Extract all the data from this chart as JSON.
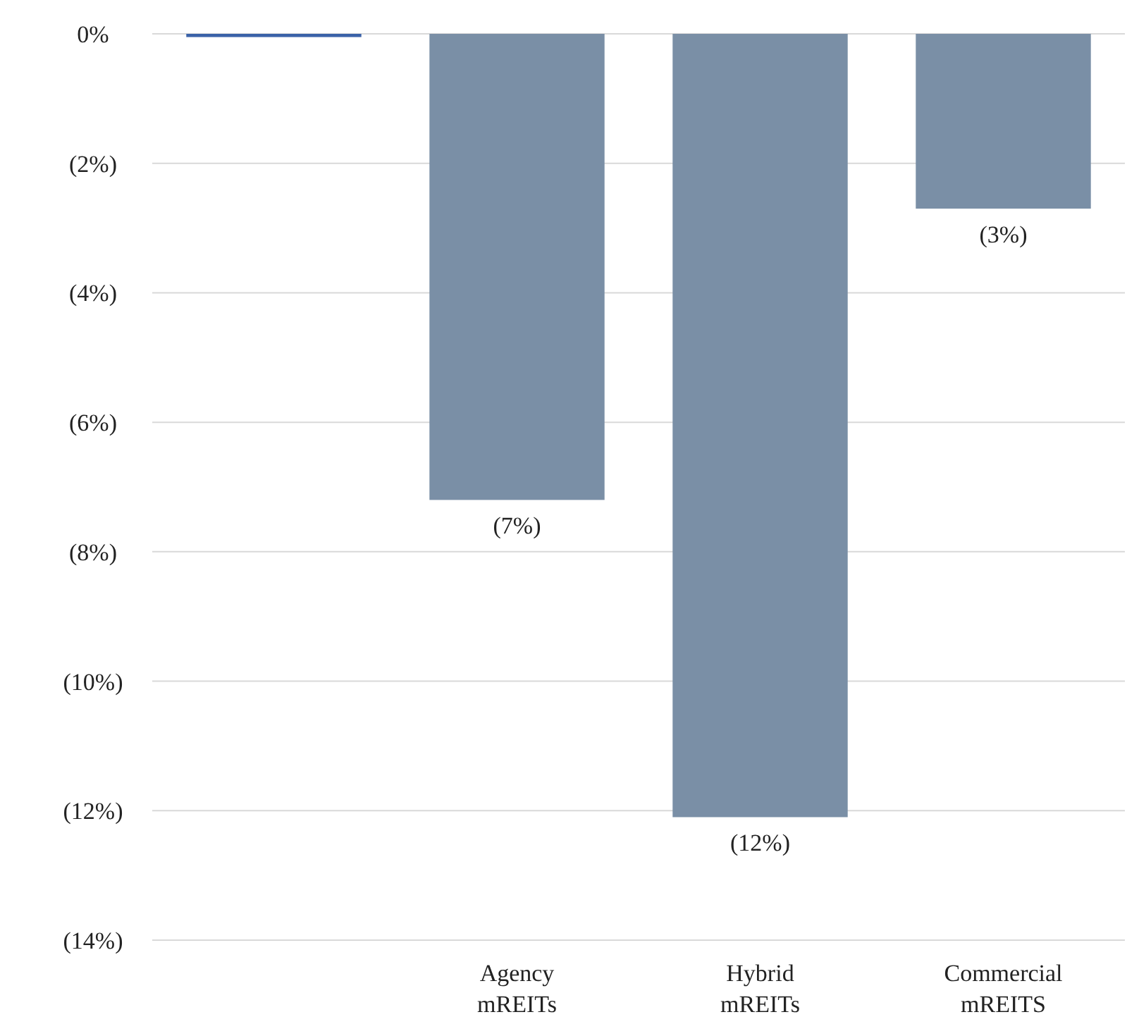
{
  "chart_data": {
    "type": "bar",
    "categories": [
      null,
      "Agency mREITs",
      "Hybrid mREITs",
      "Commercial mREITS"
    ],
    "values": [
      -0.05,
      -7.2,
      -12.1,
      -2.7
    ],
    "colors": [
      "#3a62a8",
      "#7a8fa6",
      "#7a8fa6",
      "#7a8fa6"
    ],
    "value_labels": [
      null,
      "(7%)",
      "(12%)",
      "(3%)"
    ],
    "ylim": [
      -14,
      0
    ],
    "yticks": [
      {
        "value": 0,
        "label": "0%"
      },
      {
        "value": -2,
        "label": "(2%)"
      },
      {
        "value": -4,
        "label": "(4%)"
      },
      {
        "value": -6,
        "label": "(6%)"
      },
      {
        "value": -8,
        "label": "(8%)"
      },
      {
        "value": -10,
        "label": "(10%)"
      },
      {
        "value": -12,
        "label": "(12%)"
      },
      {
        "value": -14,
        "label": "(14%)"
      }
    ],
    "grid": "y"
  }
}
